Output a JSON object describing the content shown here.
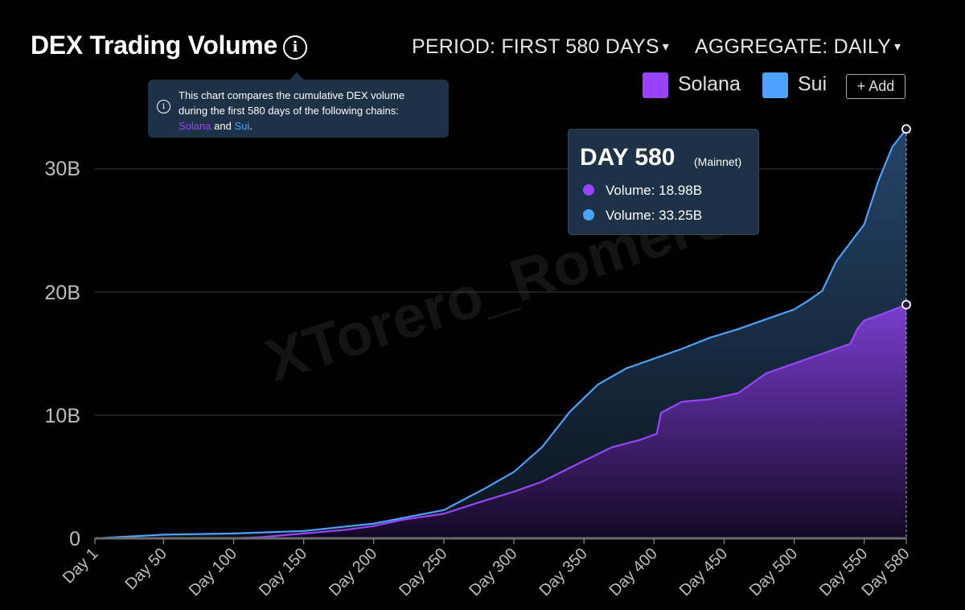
{
  "header": {
    "title": "DEX Trading Volume",
    "info_icon": "i",
    "period_label": "PERIOD: FIRST 580 DAYS",
    "aggregate_label": "AGGREGATE: DAILY",
    "caret": "▾"
  },
  "info_tooltip": {
    "line1": "This chart compares the cumulative DEX volume",
    "line2": "during the first 580 days of the following chains:",
    "solana": "Solana",
    "and": "and",
    "sui": "Sui",
    "period": "."
  },
  "legend": {
    "items": [
      {
        "name": "Solana",
        "color": "#9945ff"
      },
      {
        "name": "Sui",
        "color": "#4da2ff"
      }
    ],
    "add_label": "+ Add"
  },
  "hover_tooltip": {
    "day": "DAY 580",
    "network": "(Mainnet)",
    "rows": [
      "Volume: 18.98B",
      "Volume: 33.25B"
    ]
  },
  "watermark": "XTorero_Romero",
  "chart_data": {
    "type": "area",
    "title": "DEX Trading Volume",
    "x_unit": "day",
    "x_tick_labels": [
      "Day 1",
      "Day 50",
      "Day 100",
      "Day 150",
      "Day 200",
      "Day 250",
      "Day 300",
      "Day 350",
      "Day 400",
      "Day 450",
      "Day 500",
      "Day 550",
      "Day 580"
    ],
    "x_ticks": [
      1,
      50,
      100,
      150,
      200,
      250,
      300,
      350,
      400,
      450,
      500,
      550,
      580
    ],
    "y_tick_labels": [
      "0",
      "10B",
      "20B",
      "30B"
    ],
    "y_ticks": [
      0,
      10,
      20,
      30
    ],
    "xlim": [
      1,
      580
    ],
    "ylim": [
      0,
      34
    ],
    "y_unit": "B",
    "grid": "horizontal",
    "series": [
      {
        "name": "Solana",
        "color": "#9945ff",
        "x": [
          1,
          50,
          100,
          120,
          150,
          180,
          200,
          220,
          250,
          280,
          300,
          320,
          350,
          370,
          390,
          402,
          405,
          420,
          440,
          460,
          480,
          500,
          520,
          540,
          545,
          550,
          560,
          580
        ],
        "values": [
          0,
          0,
          0,
          0.1,
          0.4,
          0.7,
          1,
          1.5,
          2,
          3.1,
          3.8,
          4.6,
          6.3,
          7.4,
          8,
          8.5,
          10.2,
          11.1,
          11.3,
          11.8,
          13.4,
          14.2,
          15,
          15.8,
          17,
          17.7,
          18.1,
          18.98
        ]
      },
      {
        "name": "Sui",
        "color": "#4da2ff",
        "x": [
          1,
          50,
          100,
          150,
          200,
          250,
          280,
          300,
          320,
          340,
          360,
          380,
          400,
          420,
          440,
          460,
          480,
          500,
          510,
          520,
          530,
          540,
          550,
          560,
          570,
          580
        ],
        "values": [
          0,
          0.3,
          0.4,
          0.6,
          1.2,
          2.3,
          4.1,
          5.4,
          7.4,
          10.3,
          12.5,
          13.8,
          14.6,
          15.4,
          16.3,
          17,
          17.8,
          18.6,
          19.3,
          20.1,
          22.5,
          24,
          25.5,
          29,
          31.8,
          33.25
        ]
      }
    ],
    "hover_day": 580
  }
}
